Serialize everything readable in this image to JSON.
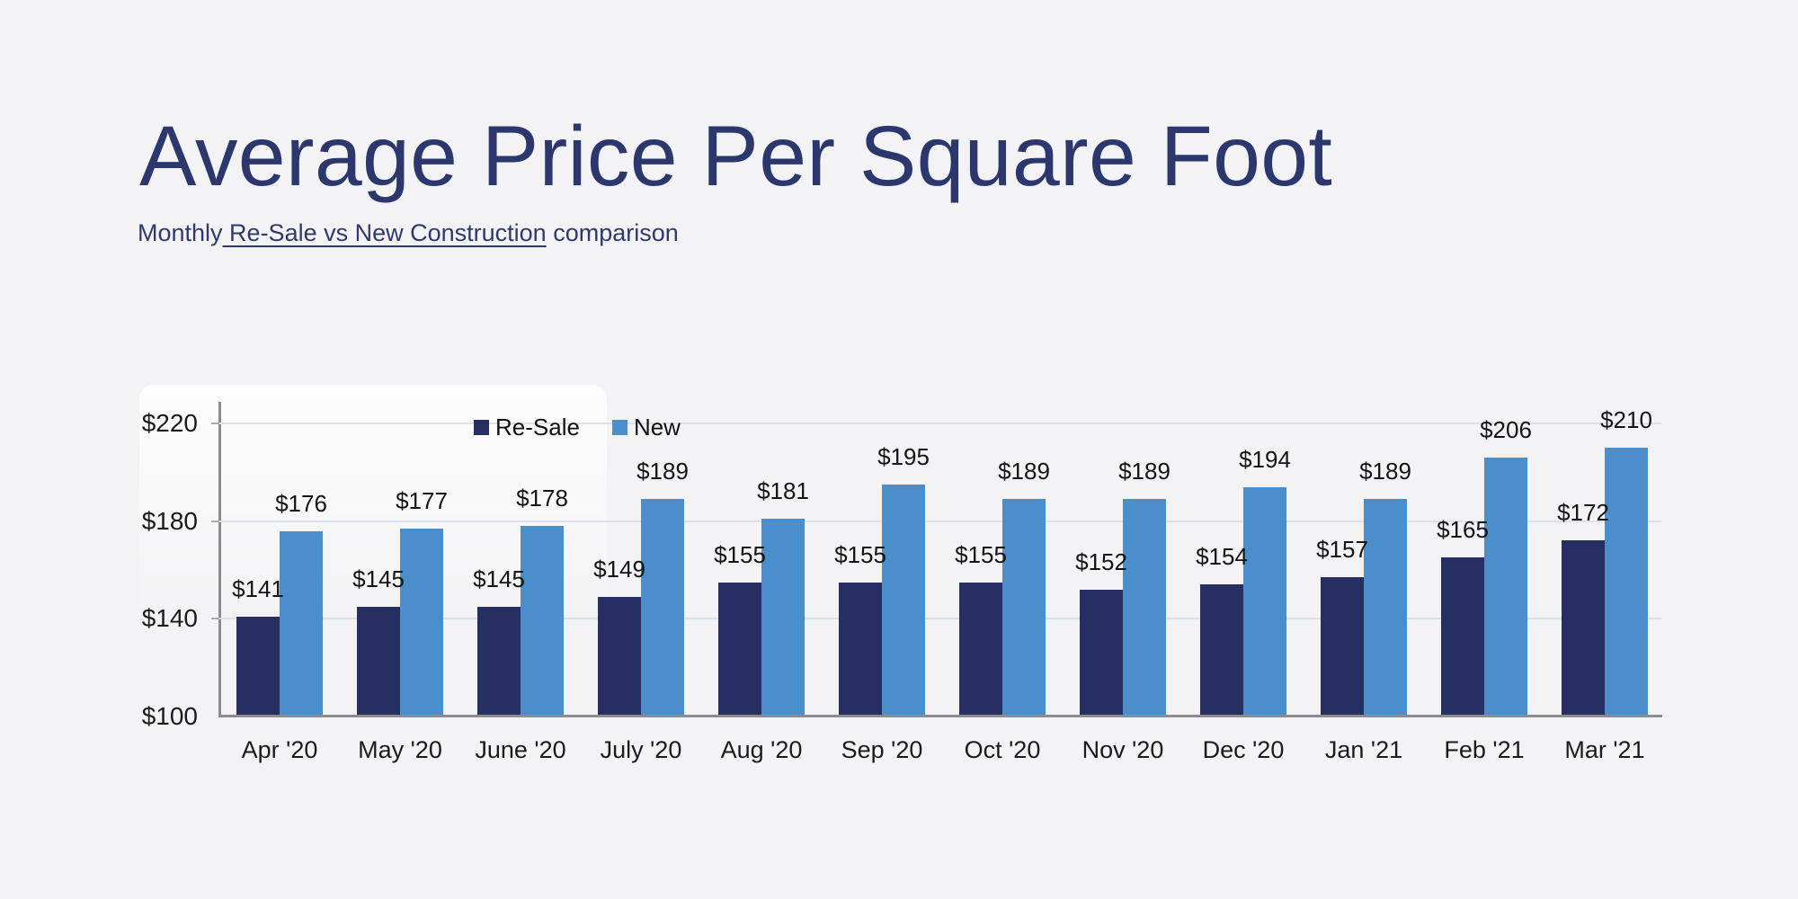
{
  "page": {
    "background": "#f3f3f5"
  },
  "header": {
    "title": "Average Price Per Square Foot",
    "subtitle_prefix": "Monthly",
    "subtitle_underlined": " Re-Sale vs New Construction",
    "subtitle_suffix": " comparison"
  },
  "chart_data": {
    "type": "bar",
    "title": "Average Price Per Square Foot",
    "subtitle": "Monthly Re-Sale vs New Construction comparison",
    "categories": [
      "Apr '20",
      "May '20",
      "June '20",
      "July '20",
      "Aug '20",
      "Sep '20",
      "Oct '20",
      "Nov '20",
      "Dec '20",
      "Jan '21",
      "Feb '21",
      "Mar '21"
    ],
    "series": [
      {
        "name": "Re-Sale",
        "color": "#272f62",
        "values": [
          141,
          145,
          145,
          149,
          155,
          155,
          155,
          152,
          154,
          157,
          165,
          172
        ]
      },
      {
        "name": "New",
        "color": "#4a8ecb",
        "values": [
          176,
          177,
          178,
          189,
          181,
          195,
          189,
          189,
          194,
          189,
          206,
          210
        ]
      }
    ],
    "value_prefix": "$",
    "ylim": [
      100,
      220
    ],
    "y_ticks": [
      220,
      180,
      140,
      100
    ],
    "grid": true,
    "legend_position": "top-inside",
    "colors": {
      "background": "#f3f3f5",
      "grid": "#dbe2ef",
      "axis": "#8c8c90",
      "title": "#2c386d",
      "label_text": "#141414"
    }
  }
}
